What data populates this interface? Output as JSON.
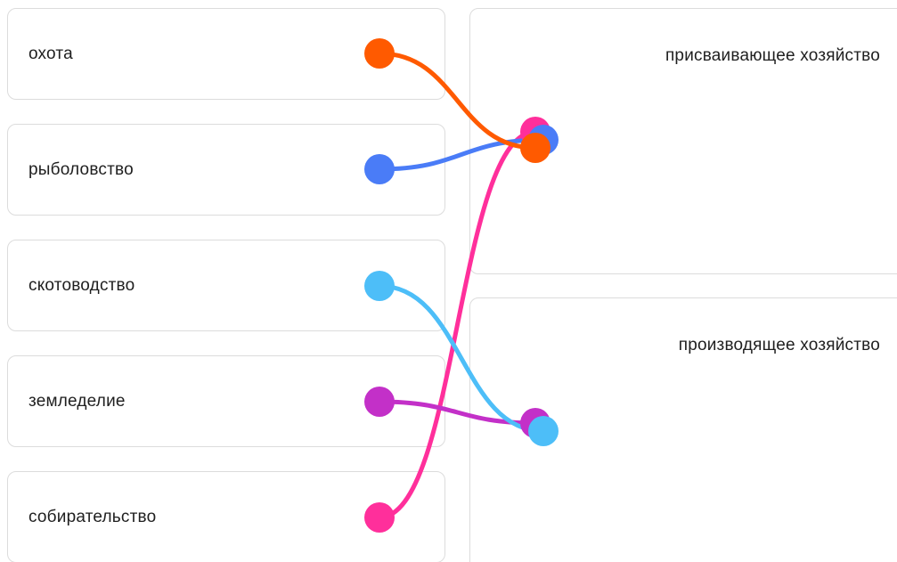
{
  "left_items": [
    {
      "label": "охота",
      "color": "#ff5a00"
    },
    {
      "label": "рыболовство",
      "color": "#4a7cf7"
    },
    {
      "label": "скотоводство",
      "color": "#4dbef8"
    },
    {
      "label": "земледелие",
      "color": "#c330c8"
    },
    {
      "label": "собирательство",
      "color": "#ff2f9b"
    }
  ],
  "right_items": [
    {
      "label": "присваивающее хозяйство"
    },
    {
      "label": "производящее хозяйство"
    }
  ],
  "connections": [
    {
      "from": 0,
      "to": 0
    },
    {
      "from": 1,
      "to": 0
    },
    {
      "from": 2,
      "to": 1
    },
    {
      "from": 3,
      "to": 1
    },
    {
      "from": 4,
      "to": 0
    }
  ]
}
